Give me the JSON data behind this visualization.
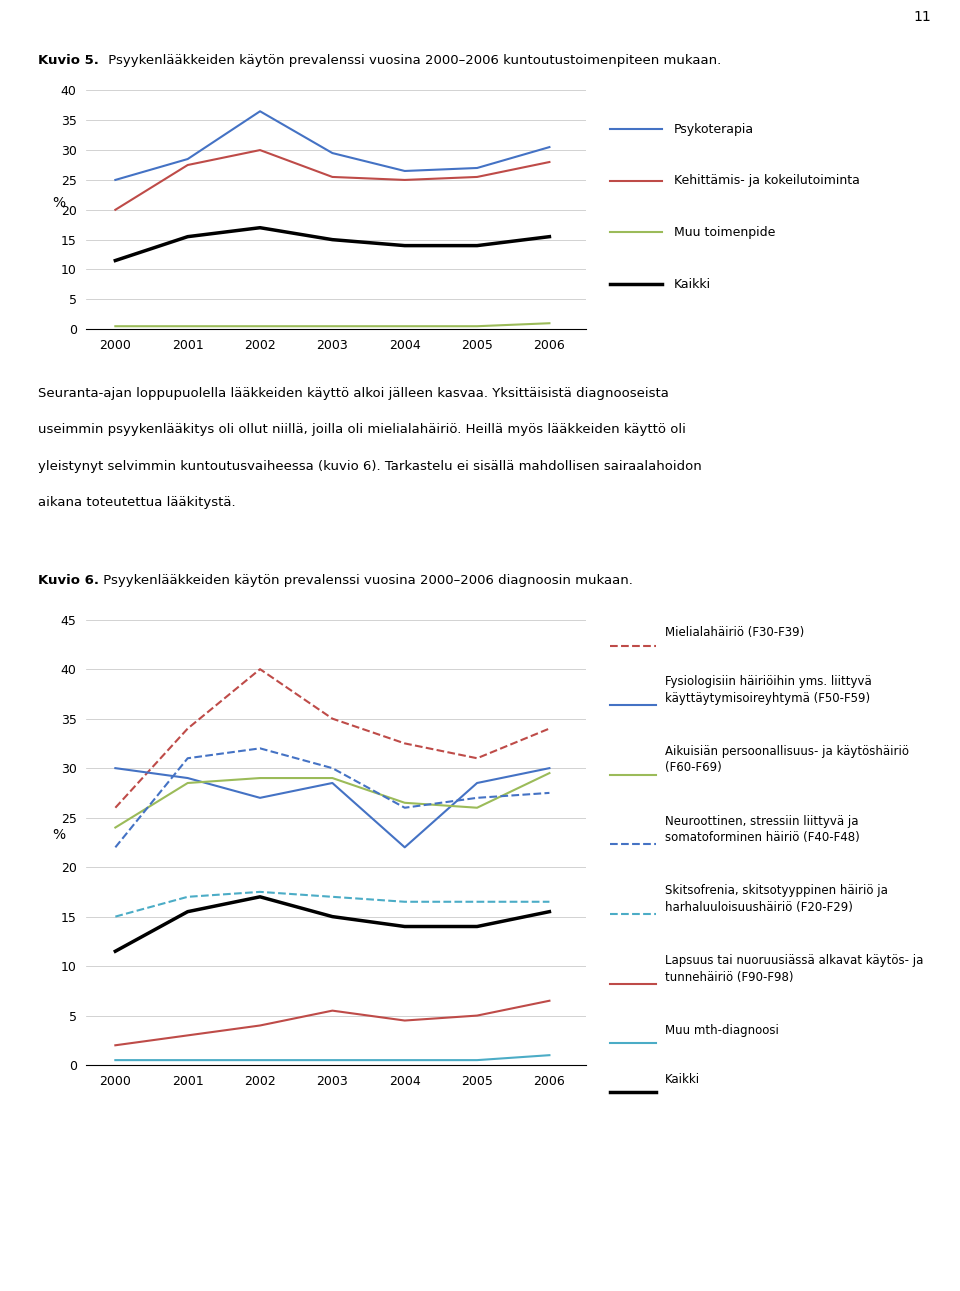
{
  "years": [
    2000,
    2001,
    2002,
    2003,
    2004,
    2005,
    2006
  ],
  "chart1_title_bold": "Kuvio 5.",
  "chart1_title_normal": " Psyykenlääkkeiden käytön prevalenssi vuosina 2000–2006 kuntoutustoimenpiteen mukaan.",
  "chart1_ylabel": "%",
  "chart1_ylim": [
    0,
    40
  ],
  "chart1_yticks": [
    0,
    5,
    10,
    15,
    20,
    25,
    30,
    35,
    40
  ],
  "chart1_series_order": [
    "Psykoterapia",
    "Kehittämis- ja kokeilutoiminta",
    "Muu toimenpide",
    "Kaikki"
  ],
  "chart1_series": {
    "Psykoterapia": {
      "values": [
        25.0,
        28.5,
        36.5,
        29.5,
        26.5,
        27.0,
        30.5
      ],
      "color": "#4472C4",
      "linestyle": "solid",
      "linewidth": 1.5
    },
    "Kehittämis- ja kokeilutoiminta": {
      "values": [
        20.0,
        27.5,
        30.0,
        25.5,
        25.0,
        25.5,
        28.0
      ],
      "color": "#BE4B48",
      "linestyle": "solid",
      "linewidth": 1.5
    },
    "Muu toimenpide": {
      "values": [
        0.5,
        0.5,
        0.5,
        0.5,
        0.5,
        0.5,
        1.0
      ],
      "color": "#9BBB59",
      "linestyle": "solid",
      "linewidth": 1.5
    },
    "Kaikki": {
      "values": [
        11.5,
        15.5,
        17.0,
        15.0,
        14.0,
        14.0,
        15.5
      ],
      "color": "#000000",
      "linestyle": "solid",
      "linewidth": 2.5
    }
  },
  "chart2_title_bold": "Kuvio 6.",
  "chart2_title_normal": " Psyykenlääkkeiden käytön prevalenssi vuosina 2000–2006 diagnoosin mukaan.",
  "chart2_ylabel": "%",
  "chart2_ylim": [
    0,
    45
  ],
  "chart2_yticks": [
    0,
    5,
    10,
    15,
    20,
    25,
    30,
    35,
    40,
    45
  ],
  "chart2_series_order": [
    "Mielialahäiriö (F30-F39)",
    "Fysiologisiin häiriöihin yms. liittyvä käyttäytymisoireyhtymä (F50-F59)",
    "Aikuisiän persoonallisuus- ja käytöshäiriö (F60-F69)",
    "Neuroottinen, stressiin liittyvä ja somatoforminen häiriö (F40-F48)",
    "Skitsofrenia, skitsotyyppinen häiriö ja harhaluuloisuushäiriö (F20-F29)",
    "Lapsuus tai nuoruusiässä alkavat käytös- ja tunnehäiriö (F90-F98)",
    "Muu mth-diagnoosi",
    "Kaikki"
  ],
  "chart2_series": {
    "Mielialahäiriö (F30-F39)": {
      "values": [
        26.0,
        34.0,
        40.0,
        35.0,
        32.5,
        31.0,
        34.0
      ],
      "color": "#BE4B48",
      "linestyle": "dashed",
      "linewidth": 1.5
    },
    "Fysiologisiin häiriöihin yms. liittyvä käyttäytymisoireyhtymä (F50-F59)": {
      "values": [
        30.0,
        29.0,
        27.0,
        28.5,
        22.0,
        28.5,
        30.0
      ],
      "color": "#4472C4",
      "linestyle": "solid",
      "linewidth": 1.5
    },
    "Aikuisiän persoonallisuus- ja käytöshäiriö (F60-F69)": {
      "values": [
        24.0,
        28.5,
        29.0,
        29.0,
        26.5,
        26.0,
        29.5
      ],
      "color": "#9BBB59",
      "linestyle": "solid",
      "linewidth": 1.5
    },
    "Neuroottinen, stressiin liittyvä ja somatoforminen häiriö (F40-F48)": {
      "values": [
        22.0,
        31.0,
        32.0,
        30.0,
        26.0,
        27.0,
        27.5
      ],
      "color": "#4472C4",
      "linestyle": "dashed",
      "linewidth": 1.5
    },
    "Skitsofrenia, skitsotyyppinen häiriö ja harhaluuloisuushäiriö (F20-F29)": {
      "values": [
        15.0,
        17.0,
        17.5,
        17.0,
        16.5,
        16.5,
        16.5
      ],
      "color": "#4BACC6",
      "linestyle": "dashed",
      "linewidth": 1.5
    },
    "Lapsuus tai nuoruusiässä alkavat käytös- ja tunnehäiriö (F90-F98)": {
      "values": [
        2.0,
        3.0,
        4.0,
        5.5,
        4.5,
        5.0,
        6.5
      ],
      "color": "#BE4B48",
      "linestyle": "solid",
      "linewidth": 1.5
    },
    "Muu mth-diagnoosi": {
      "values": [
        0.5,
        0.5,
        0.5,
        0.5,
        0.5,
        0.5,
        1.0
      ],
      "color": "#4BACC6",
      "linestyle": "solid",
      "linewidth": 1.5
    },
    "Kaikki": {
      "values": [
        11.5,
        15.5,
        17.0,
        15.0,
        14.0,
        14.0,
        15.5
      ],
      "color": "#000000",
      "linestyle": "solid",
      "linewidth": 2.5
    }
  },
  "text_line1": "Seuranta-ajan loppupuolella lääkkeiden käyttö alkoi jälleen kasvaa. Yksittäisistä diagnooseista",
  "text_line2": "useimmin psyykenlääkitys oli ollut niillä, joilla oli mielialahäiriö. Heillä myös lääkkeiden käyttö oli",
  "text_line3": "yleistynyt selvimmin kuntoutusvaiheessa (kuvio 6). Tarkastelu ei sisällä mahdollisen sairaalahoidon",
  "text_line4": "aikana toteutettua lääkitystä.",
  "page_number": "11",
  "background_color": "#FFFFFF",
  "grid_color": "#C0C0C0",
  "text_color": "#000000"
}
